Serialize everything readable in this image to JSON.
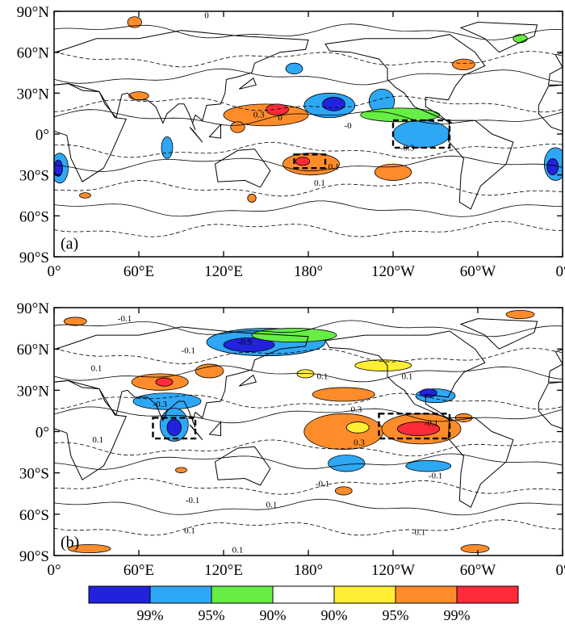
{
  "chart_data": [
    {
      "type": "heatmap",
      "panel_label": "(a)",
      "x_ticks": [
        "0°",
        "60°E",
        "120°E",
        "180°",
        "120°W",
        "60°W",
        "0°"
      ],
      "y_ticks": [
        "90°N",
        "60°N",
        "30°N",
        "0°",
        "30°S",
        "60°S",
        "90°S"
      ],
      "xlim": [
        0,
        360
      ],
      "ylim": [
        -90,
        90
      ],
      "contour_labels": [
        {
          "text": "0.3",
          "lon": 145,
          "lat": 12
        },
        {
          "text": "0",
          "lon": 160,
          "lat": 10
        },
        {
          "text": "-0.3",
          "lon": 250,
          "lat": -12
        },
        {
          "text": "0.1",
          "lon": 198,
          "lat": -26
        },
        {
          "text": "0.1",
          "lon": 188,
          "lat": -38
        },
        {
          "text": "-0",
          "lon": 208,
          "lat": 4
        },
        {
          "text": "0",
          "lon": 108,
          "lat": 85
        }
      ],
      "box_regions": [
        {
          "lon": [
            240,
            280
          ],
          "lat": [
            -10,
            10
          ]
        },
        {
          "lon": [
            170,
            192
          ],
          "lat": [
            -25,
            -15
          ]
        }
      ],
      "significance_patches": [
        {
          "lon": 195,
          "lat": 21,
          "rlon": 18,
          "rlat": 9,
          "level": "95%",
          "sign": "negative"
        },
        {
          "lon": 198,
          "lat": 22,
          "rlon": 8,
          "rlat": 5,
          "level": "99%",
          "sign": "negative"
        },
        {
          "lon": 232,
          "lat": 24,
          "rlon": 9,
          "rlat": 9,
          "level": "95%",
          "sign": "negative"
        },
        {
          "lon": 260,
          "lat": 0,
          "rlon": 20,
          "rlat": 10,
          "level": "95%",
          "sign": "negative"
        },
        {
          "lon": 245,
          "lat": 14,
          "rlon": 28,
          "rlat": 5,
          "level": "90%",
          "sign": "negative"
        },
        {
          "lon": 150,
          "lat": 14,
          "rlon": 30,
          "rlat": 8,
          "level": "95%",
          "sign": "positive"
        },
        {
          "lon": 158,
          "lat": 18,
          "rlon": 8,
          "rlat": 4,
          "level": "99%",
          "sign": "positive"
        },
        {
          "lon": 130,
          "lat": 5,
          "rlon": 5,
          "rlat": 4,
          "level": "95%",
          "sign": "positive"
        },
        {
          "lon": 182,
          "lat": -22,
          "rlon": 20,
          "rlat": 8,
          "level": "95%",
          "sign": "positive"
        },
        {
          "lon": 176,
          "lat": -20,
          "rlon": 5,
          "rlat": 3,
          "level": "99%",
          "sign": "positive"
        },
        {
          "lon": 240,
          "lat": -28,
          "rlon": 13,
          "rlat": 6,
          "level": "95%",
          "sign": "positive"
        },
        {
          "lon": 60,
          "lat": 28,
          "rlon": 7,
          "rlat": 3,
          "level": "95%",
          "sign": "positive"
        },
        {
          "lon": 170,
          "lat": 48,
          "rlon": 6,
          "rlat": 4,
          "level": "95%",
          "sign": "negative"
        },
        {
          "lon": 290,
          "lat": 51,
          "rlon": 8,
          "rlat": 4,
          "level": "95%",
          "sign": "positive"
        },
        {
          "lon": 57,
          "lat": 82,
          "rlon": 5,
          "rlat": 4,
          "level": "95%",
          "sign": "positive"
        },
        {
          "lon": 4,
          "lat": -25,
          "rlon": 6,
          "rlat": 11,
          "level": "95%",
          "sign": "negative"
        },
        {
          "lon": 3,
          "lat": -25,
          "rlon": 3,
          "rlat": 6,
          "level": "99%",
          "sign": "negative"
        },
        {
          "lon": 355,
          "lat": -22,
          "rlon": 8,
          "rlat": 12,
          "level": "95%",
          "sign": "negative"
        },
        {
          "lon": 353,
          "lat": -24,
          "rlon": 4,
          "rlat": 6,
          "level": "99%",
          "sign": "negative"
        },
        {
          "lon": 80,
          "lat": -10,
          "rlon": 4,
          "rlat": 8,
          "level": "95%",
          "sign": "negative"
        },
        {
          "lon": 22,
          "lat": -45,
          "rlon": 4,
          "rlat": 2,
          "level": "95%",
          "sign": "positive"
        },
        {
          "lon": 140,
          "lat": -47,
          "rlon": 3,
          "rlat": 3,
          "level": "95%",
          "sign": "positive"
        },
        {
          "lon": 330,
          "lat": 70,
          "rlon": 5,
          "rlat": 3,
          "level": "90%",
          "sign": "negative"
        }
      ]
    },
    {
      "type": "heatmap",
      "panel_label": "(b)",
      "x_ticks": [
        "0°",
        "60°E",
        "120°E",
        "180°",
        "120°W",
        "60°W",
        "0°"
      ],
      "y_ticks": [
        "90°N",
        "60°N",
        "30°N",
        "0°",
        "30°S",
        "60°S",
        "90°S"
      ],
      "xlim": [
        0,
        360
      ],
      "ylim": [
        -90,
        90
      ],
      "contour_labels": [
        {
          "text": "-0.1",
          "lon": 50,
          "lat": 80
        },
        {
          "text": "-0.9",
          "lon": 135,
          "lat": 63
        },
        {
          "text": "-0.1",
          "lon": 95,
          "lat": 57
        },
        {
          "text": "0.1",
          "lon": 30,
          "lat": 44
        },
        {
          "text": "0.1",
          "lon": 190,
          "lat": 38
        },
        {
          "text": "0.1",
          "lon": 250,
          "lat": 38
        },
        {
          "text": "-0.3",
          "lon": 75,
          "lat": 18
        },
        {
          "text": "0.3",
          "lon": 214,
          "lat": 14
        },
        {
          "text": "-0.1",
          "lon": 267,
          "lat": 4
        },
        {
          "text": "0.3",
          "lon": 216,
          "lat": -10
        },
        {
          "text": "0.1",
          "lon": 31,
          "lat": -8
        },
        {
          "text": "-0.1",
          "lon": 270,
          "lat": -34
        },
        {
          "text": "-0.1",
          "lon": 98,
          "lat": -52
        },
        {
          "text": "0.1",
          "lon": 154,
          "lat": -55
        },
        {
          "text": "-0.1",
          "lon": 258,
          "lat": -75
        },
        {
          "text": "0.1",
          "lon": 96,
          "lat": -74
        },
        {
          "text": "0.1",
          "lon": 130,
          "lat": -88
        },
        {
          "text": "-0.1",
          "lon": 190,
          "lat": -40
        }
      ],
      "box_regions": [
        {
          "lon": [
            70,
            100
          ],
          "lat": [
            -5,
            10
          ]
        },
        {
          "lon": [
            230,
            280
          ],
          "lat": [
            -5,
            13
          ]
        }
      ],
      "significance_patches": [
        {
          "lon": 150,
          "lat": 65,
          "rlon": 42,
          "rlat": 10,
          "level": "95%",
          "sign": "negative"
        },
        {
          "lon": 138,
          "lat": 63,
          "rlon": 18,
          "rlat": 5,
          "level": "99%",
          "sign": "negative"
        },
        {
          "lon": 170,
          "lat": 70,
          "rlon": 30,
          "rlat": 5,
          "level": "90%",
          "sign": "negative"
        },
        {
          "lon": 75,
          "lat": 36,
          "rlon": 20,
          "rlat": 6,
          "level": "95%",
          "sign": "positive"
        },
        {
          "lon": 78,
          "lat": 36,
          "rlon": 6,
          "rlat": 3,
          "level": "99%",
          "sign": "positive"
        },
        {
          "lon": 110,
          "lat": 44,
          "rlon": 10,
          "rlat": 5,
          "level": "95%",
          "sign": "positive"
        },
        {
          "lon": 233,
          "lat": 48,
          "rlon": 20,
          "rlat": 4,
          "level": "90%",
          "sign": "positive"
        },
        {
          "lon": 80,
          "lat": 22,
          "rlon": 24,
          "rlat": 6,
          "level": "95%",
          "sign": "negative"
        },
        {
          "lon": 85,
          "lat": 5,
          "rlon": 10,
          "rlat": 12,
          "level": "95%",
          "sign": "negative"
        },
        {
          "lon": 85,
          "lat": 3,
          "rlon": 5,
          "rlat": 6,
          "level": "99%",
          "sign": "negative"
        },
        {
          "lon": 205,
          "lat": 0,
          "rlon": 28,
          "rlat": 13,
          "level": "95%",
          "sign": "positive"
        },
        {
          "lon": 215,
          "lat": 3,
          "rlon": 8,
          "rlat": 4,
          "level": "90%",
          "sign": "positive"
        },
        {
          "lon": 260,
          "lat": 2,
          "rlon": 28,
          "rlat": 11,
          "level": "95%",
          "sign": "positive"
        },
        {
          "lon": 258,
          "lat": 2,
          "rlon": 15,
          "rlat": 5,
          "level": "99%",
          "sign": "positive"
        },
        {
          "lon": 205,
          "lat": 27,
          "rlon": 22,
          "rlat": 5,
          "level": "95%",
          "sign": "positive"
        },
        {
          "lon": 270,
          "lat": 26,
          "rlon": 14,
          "rlat": 5,
          "level": "95%",
          "sign": "negative"
        },
        {
          "lon": 265,
          "lat": 28,
          "rlon": 6,
          "rlat": 3,
          "level": "99%",
          "sign": "negative"
        },
        {
          "lon": 207,
          "lat": -23,
          "rlon": 13,
          "rlat": 6,
          "level": "95%",
          "sign": "negative"
        },
        {
          "lon": 265,
          "lat": -25,
          "rlon": 16,
          "rlat": 4,
          "level": "95%",
          "sign": "negative"
        },
        {
          "lon": 205,
          "lat": -43,
          "rlon": 6,
          "rlat": 3,
          "level": "95%",
          "sign": "positive"
        },
        {
          "lon": 90,
          "lat": -28,
          "rlon": 4,
          "rlat": 2,
          "level": "95%",
          "sign": "positive"
        },
        {
          "lon": 15,
          "lat": 80,
          "rlon": 8,
          "rlat": 3,
          "level": "95%",
          "sign": "positive"
        },
        {
          "lon": 330,
          "lat": 85,
          "rlon": 10,
          "rlat": 3,
          "level": "95%",
          "sign": "positive"
        },
        {
          "lon": 25,
          "lat": -85,
          "rlon": 15,
          "rlat": 3,
          "level": "95%",
          "sign": "positive"
        },
        {
          "lon": 298,
          "lat": -85,
          "rlon": 10,
          "rlat": 3,
          "level": "95%",
          "sign": "positive"
        },
        {
          "lon": 178,
          "lat": 42,
          "rlon": 6,
          "rlat": 3,
          "level": "90%",
          "sign": "positive"
        },
        {
          "lon": 290,
          "lat": 10,
          "rlon": 6,
          "rlat": 3,
          "level": "95%",
          "sign": "positive"
        }
      ]
    }
  ],
  "legend": {
    "colors": [
      "#2222dd",
      "#2ea8f5",
      "#66ee44",
      "#ffffff",
      "#ffee33",
      "#ff8c2a",
      "#ff2a3a"
    ],
    "labels": [
      "99%",
      "95%",
      "90%",
      "90%",
      "95%",
      "99%"
    ]
  }
}
